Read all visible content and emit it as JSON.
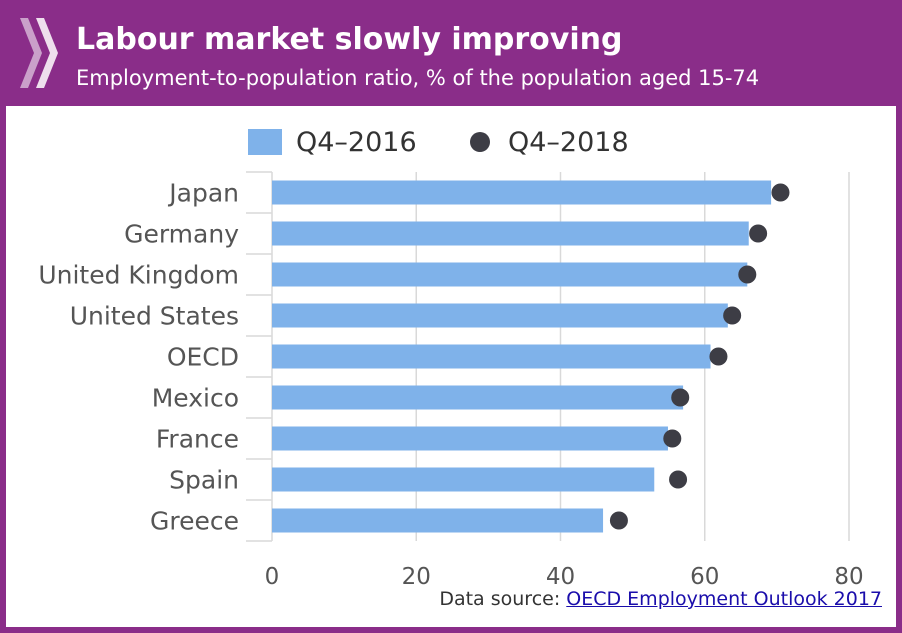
{
  "header": {
    "title": "Labour market slowly improving",
    "subtitle": "Employment-to-population ratio, % of the population aged 15-74",
    "logo_icon": "oecd-chevrons-logo-icon"
  },
  "colors": {
    "header_bg": "#8a2d89",
    "bar": "#7fb2ea",
    "dot": "#3d3d45",
    "grid": "#d9d9d9",
    "text": "#555555"
  },
  "source": {
    "prefix": "Data source:",
    "link_text": "OECD Employment Outlook 2017"
  },
  "chart_data": {
    "type": "bar",
    "orientation": "horizontal",
    "categories": [
      "Japan",
      "Germany",
      "United Kingdom",
      "United States",
      "OECD",
      "Mexico",
      "France",
      "Spain",
      "Greece"
    ],
    "series": [
      {
        "name": "Q4–2016",
        "style": "bar",
        "values": [
          69.2,
          66.1,
          65.9,
          63.2,
          60.8,
          57.0,
          54.9,
          53.0,
          45.9
        ]
      },
      {
        "name": "Q4–2018",
        "style": "dot",
        "values": [
          70.5,
          67.4,
          65.9,
          63.8,
          61.9,
          56.6,
          55.5,
          56.3,
          48.1
        ]
      }
    ],
    "xlim": [
      0,
      80
    ],
    "xticks": [
      "0",
      "20",
      "40",
      "60",
      "80"
    ],
    "grid": true,
    "legend_position": "top-center"
  }
}
